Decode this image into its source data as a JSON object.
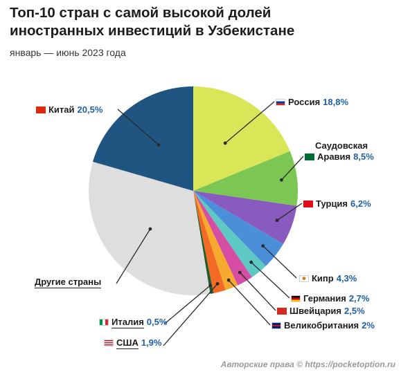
{
  "header": {
    "title_line1": "Топ-10 стран с самой высокой долей",
    "title_line2": "иностранных инвестиций в Узбекистане",
    "subtitle": "январь — июнь 2023 года"
  },
  "footer": "Авторские права © https://pocketoption.ru",
  "colors": {
    "percent": "#1f5fa8",
    "leader": "#2a2a2a"
  },
  "chart_data": {
    "type": "pie",
    "start_angle_deg": 0,
    "direction": "clockwise",
    "slices": [
      {
        "name": "Россия",
        "value": 18.8,
        "label": "18,8%",
        "color": "#d9e657",
        "flag": "flag-russia-icon"
      },
      {
        "name": "Саудовская Аравия",
        "label_line1": "Саудовская",
        "label_line2": "Аравия",
        "value": 8.5,
        "label": "8,5%",
        "color": "#7cc653",
        "flag": "flag-saudi-arabia-icon"
      },
      {
        "name": "Турция",
        "value": 6.2,
        "label": "6,2%",
        "color": "#8a5bbf",
        "flag": "flag-turkey-icon"
      },
      {
        "name": "Кипр",
        "value": 4.3,
        "label": "4,3%",
        "color": "#4a8fd8",
        "flag": "flag-cyprus-icon"
      },
      {
        "name": "Германия",
        "value": 2.7,
        "label": "2,7%",
        "color": "#5dc8c4",
        "flag": "flag-germany-icon"
      },
      {
        "name": "Швейцария",
        "value": 2.5,
        "label": "2,5%",
        "color": "#d64ea3",
        "flag": "flag-switzerland-icon"
      },
      {
        "name": "Великобритания",
        "value": 2.0,
        "label": "2%",
        "color": "#f5a92e",
        "flag": "flag-uk-icon"
      },
      {
        "name": "США",
        "value": 1.9,
        "label": "1,9%",
        "color": "#f26b24",
        "flag": "flag-usa-icon"
      },
      {
        "name": "Италия",
        "value": 0.5,
        "label": "0,5%",
        "color": "#1f5c2a",
        "flag": "flag-italy-icon"
      },
      {
        "name": "Другие страны",
        "value": 32.1,
        "label": "",
        "color": "#dedede",
        "flag": ""
      },
      {
        "name": "Китай",
        "value": 20.5,
        "label": "20,5%",
        "color": "#1f5580",
        "flag": "flag-china-icon"
      }
    ]
  }
}
